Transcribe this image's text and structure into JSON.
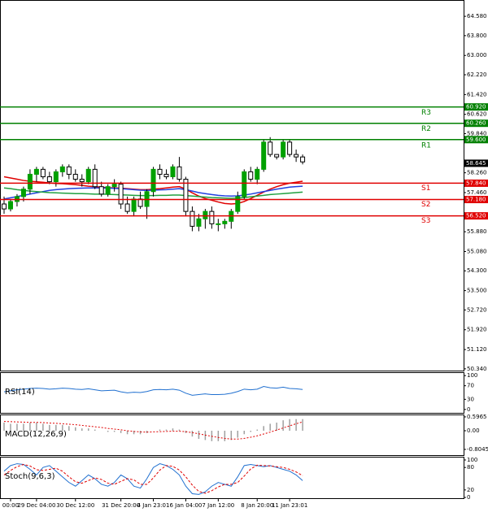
{
  "chart_data": [
    {
      "type": "candlestick",
      "categories": [
        null,
        "00:00",
        null,
        null,
        null,
        "29 Dec 04:00",
        null,
        null,
        null,
        null,
        null,
        "30 Dec 12:00",
        null,
        null,
        null,
        null,
        null,
        null,
        "31 Dec 20:00",
        null,
        null,
        null,
        null,
        "4 Jan 23:01",
        null,
        null,
        null,
        null,
        "6 Jan 04:00",
        null,
        null,
        null,
        null,
        "7 Jan 12:00",
        null,
        null,
        null,
        null,
        null,
        "8 Jan 20:00",
        null,
        null,
        null,
        null,
        "11 Jan 23:01",
        null,
        null
      ],
      "open": [
        57.0,
        56.8,
        57.1,
        57.3,
        57.6,
        58.2,
        58.4,
        58.1,
        57.9,
        58.3,
        58.5,
        58.2,
        58.0,
        57.9,
        58.4,
        57.7,
        57.4,
        57.7,
        57.8,
        57.0,
        56.7,
        57.2,
        56.9,
        57.5,
        58.4,
        58.2,
        58.1,
        58.5,
        58.0,
        56.7,
        56.1,
        56.4,
        56.7,
        56.2,
        56.2,
        56.3,
        56.7,
        57.3,
        58.3,
        58.0,
        58.4,
        59.5,
        59.0,
        58.9,
        59.5,
        59.0,
        58.9
      ],
      "high": [
        57.3,
        57.2,
        57.4,
        57.7,
        58.4,
        58.5,
        58.5,
        58.3,
        58.4,
        58.6,
        58.6,
        58.4,
        58.2,
        58.5,
        58.6,
        57.9,
        57.8,
        58.0,
        57.9,
        57.3,
        57.3,
        57.5,
        57.6,
        58.5,
        58.6,
        58.4,
        58.6,
        58.9,
        58.1,
        56.9,
        56.6,
        56.8,
        56.9,
        56.4,
        56.4,
        56.8,
        57.5,
        58.4,
        58.5,
        58.5,
        59.6,
        59.7,
        59.0,
        59.6,
        59.6,
        59.2,
        59.0
      ],
      "low": [
        56.6,
        56.7,
        56.9,
        57.1,
        57.4,
        57.9,
        58.0,
        57.8,
        57.7,
        58.1,
        58.0,
        57.9,
        57.7,
        57.8,
        57.6,
        57.3,
        57.3,
        57.5,
        56.8,
        56.6,
        56.5,
        56.8,
        56.4,
        57.3,
        58.0,
        58.0,
        58.0,
        57.9,
        56.5,
        55.9,
        55.9,
        56.0,
        56.0,
        55.9,
        56.0,
        56.0,
        56.6,
        57.2,
        57.9,
        57.8,
        58.3,
        58.9,
        58.8,
        58.8,
        58.9,
        58.7,
        58.6
      ],
      "close": [
        56.8,
        57.1,
        57.3,
        57.6,
        58.2,
        58.4,
        58.1,
        57.9,
        58.3,
        58.5,
        58.2,
        58.0,
        57.9,
        58.4,
        57.7,
        57.4,
        57.7,
        57.8,
        57.0,
        56.7,
        57.2,
        56.9,
        57.5,
        58.4,
        58.2,
        58.1,
        58.5,
        58.0,
        56.7,
        56.1,
        56.4,
        56.7,
        56.2,
        56.2,
        56.3,
        56.7,
        57.3,
        58.3,
        58.0,
        58.4,
        59.5,
        59.0,
        58.9,
        59.5,
        59.0,
        58.9,
        58.7
      ],
      "bull_color": "#00a000",
      "bear_color": "#000000",
      "series": [
        {
          "color": "#e00000",
          "values": [
            58.1,
            58.05,
            58.0,
            57.95,
            57.92,
            57.9,
            57.88,
            57.85,
            57.83,
            57.82,
            57.8,
            57.78,
            57.75,
            57.72,
            57.7,
            57.68,
            57.66,
            57.65,
            57.64,
            57.62,
            57.6,
            57.58,
            57.58,
            57.6,
            57.62,
            57.65,
            57.68,
            57.7,
            57.6,
            57.45,
            57.32,
            57.22,
            57.15,
            57.08,
            57.02,
            57.0,
            57.02,
            57.1,
            57.22,
            57.35,
            57.48,
            57.6,
            57.7,
            57.78,
            57.84,
            57.88,
            57.92
          ]
        },
        {
          "color": "#2040e0",
          "values": [
            57.2,
            57.25,
            57.3,
            57.35,
            57.4,
            57.45,
            57.5,
            57.55,
            57.58,
            57.6,
            57.62,
            57.63,
            57.64,
            57.65,
            57.65,
            57.65,
            57.64,
            57.63,
            57.62,
            57.6,
            57.58,
            57.56,
            57.55,
            57.56,
            57.57,
            57.58,
            57.6,
            57.62,
            57.58,
            57.52,
            57.46,
            57.42,
            57.38,
            57.35,
            57.33,
            57.32,
            57.33,
            57.36,
            57.4,
            57.45,
            57.5,
            57.55,
            57.6,
            57.64,
            57.68,
            57.7,
            57.72
          ]
        },
        {
          "color": "#20a040",
          "values": [
            57.65,
            57.62,
            57.58,
            57.55,
            57.52,
            57.5,
            57.48,
            57.46,
            57.45,
            57.44,
            57.43,
            57.42,
            57.42,
            57.41,
            57.4,
            57.4,
            57.39,
            57.38,
            57.37,
            57.36,
            57.35,
            57.34,
            57.34,
            57.34,
            57.35,
            57.35,
            57.36,
            57.36,
            57.34,
            57.32,
            57.3,
            57.28,
            57.26,
            57.25,
            57.24,
            57.23,
            57.24,
            57.26,
            57.29,
            57.32,
            57.35,
            57.38,
            57.4,
            57.42,
            57.44,
            57.46,
            57.48
          ]
        }
      ],
      "levels": {
        "names": [
          "R3",
          "R2",
          "R1",
          "S1",
          "S2",
          "S3"
        ],
        "values": [
          60.92,
          60.26,
          59.6,
          57.84,
          57.18,
          56.52
        ],
        "value_labels": [
          "60.920",
          "60.260",
          "59.600",
          "57.840",
          "57.180",
          "56.520"
        ],
        "colors": [
          "#008000",
          "#008000",
          "#008000",
          "#e00000",
          "#e00000",
          "#e00000"
        ]
      },
      "last": {
        "value": 58.645,
        "label": "58.645"
      },
      "ylim": [
        50.27,
        65.24
      ],
      "yticks": [
        {
          "value": 64.58,
          "label": "64.580"
        },
        {
          "value": 63.8,
          "label": "63.800"
        },
        {
          "value": 63.0,
          "label": "63.000"
        },
        {
          "value": 62.22,
          "label": "62.220"
        },
        {
          "value": 61.42,
          "label": "61.420"
        },
        {
          "value": 60.62,
          "label": "60.620"
        },
        {
          "value": 59.84,
          "label": "59.840"
        },
        {
          "value": 58.26,
          "label": "58.260"
        },
        {
          "value": 57.46,
          "label": "57.460"
        },
        {
          "value": 55.88,
          "label": "55.880"
        },
        {
          "value": 55.08,
          "label": "55.080"
        },
        {
          "value": 54.3,
          "label": "54.300"
        },
        {
          "value": 53.5,
          "label": "53.500"
        },
        {
          "value": 52.72,
          "label": "52.720"
        },
        {
          "value": 51.92,
          "label": "51.920"
        },
        {
          "value": 51.12,
          "label": "51.120"
        },
        {
          "value": 50.34,
          "label": "50.340"
        }
      ]
    },
    {
      "type": "line",
      "title": "RSI(14)",
      "color": "#2070d0",
      "values": [
        52,
        55,
        58,
        60,
        62,
        63,
        62,
        60,
        61,
        63,
        62,
        60,
        59,
        61,
        58,
        55,
        56,
        57,
        52,
        49,
        51,
        50,
        53,
        58,
        59,
        58,
        60,
        57,
        48,
        42,
        44,
        46,
        44,
        44,
        45,
        48,
        53,
        60,
        58,
        60,
        68,
        64,
        63,
        66,
        62,
        61,
        59
      ],
      "ylim": [
        -10,
        110
      ],
      "yticks": [
        100,
        70,
        30,
        0
      ]
    },
    {
      "type": "macd",
      "title": "MACD(12,26,9)",
      "color": "#a0a0a0",
      "values": [
        0.35,
        0.3,
        0.3,
        0.3,
        0.35,
        0.35,
        0.3,
        0.25,
        0.25,
        0.25,
        0.2,
        0.15,
        0.1,
        0.1,
        0.05,
        0,
        -0.05,
        -0.05,
        -0.1,
        -0.15,
        -0.15,
        -0.15,
        -0.1,
        0,
        0.05,
        0.05,
        0.1,
        0.05,
        -0.1,
        -0.25,
        -0.35,
        -0.4,
        -0.45,
        -0.45,
        -0.45,
        -0.4,
        -0.3,
        -0.15,
        -0.05,
        0.05,
        0.2,
        0.3,
        0.35,
        0.45,
        0.5,
        0.5,
        0.5
      ],
      "signal": {
        "color": "#e00000",
        "values": [
          0.4,
          0.39,
          0.38,
          0.37,
          0.36,
          0.36,
          0.35,
          0.33,
          0.32,
          0.3,
          0.28,
          0.26,
          0.23,
          0.2,
          0.17,
          0.14,
          0.1,
          0.07,
          0.04,
          0.0,
          -0.03,
          -0.05,
          -0.06,
          -0.05,
          -0.04,
          -0.03,
          -0.02,
          -0.02,
          -0.04,
          -0.08,
          -0.13,
          -0.19,
          -0.24,
          -0.29,
          -0.33,
          -0.36,
          -0.36,
          -0.33,
          -0.28,
          -0.22,
          -0.14,
          -0.06,
          0.03,
          0.12,
          0.21,
          0.3,
          0.38
        ]
      },
      "ylim": [
        -1.05,
        0.7
      ],
      "yticks": [
        0.5965,
        {
          "value": 0,
          "label": "0.00"
        },
        -0.8045
      ]
    },
    {
      "type": "stochastic",
      "title": "Stoch(9,6,3)",
      "series": [
        {
          "color": "#2070d0",
          "values": [
            70,
            85,
            90,
            88,
            75,
            60,
            80,
            85,
            70,
            55,
            40,
            30,
            45,
            60,
            50,
            35,
            30,
            40,
            60,
            50,
            30,
            25,
            50,
            80,
            90,
            85,
            75,
            60,
            30,
            10,
            8,
            15,
            30,
            40,
            35,
            30,
            55,
            85,
            88,
            85,
            82,
            85,
            80,
            75,
            70,
            60,
            45
          ]
        },
        {
          "color": "#e00000",
          "dashed": true,
          "values": [
            60,
            72,
            82,
            88,
            84,
            74,
            72,
            75,
            78,
            70,
            55,
            42,
            38,
            45,
            52,
            48,
            38,
            35,
            43,
            50,
            47,
            35,
            35,
            52,
            73,
            85,
            83,
            73,
            55,
            33,
            16,
            11,
            18,
            28,
            35,
            35,
            40,
            57,
            76,
            86,
            85,
            84,
            82,
            80,
            75,
            68,
            58
          ]
        }
      ],
      "ylim": [
        -2,
        108.6
      ],
      "yticks": [
        100,
        80,
        20,
        0
      ]
    }
  ]
}
